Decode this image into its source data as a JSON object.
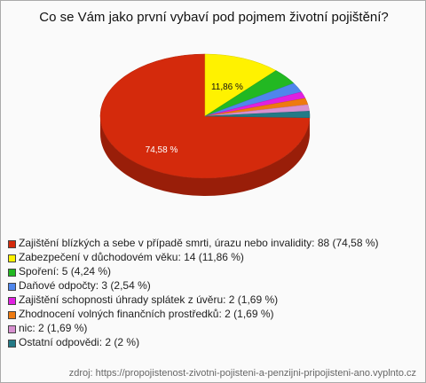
{
  "chart_data": {
    "type": "pie",
    "title": "Co se Vám jako první vybaví pod pojmem životní pojištění?",
    "categories": [
      "Zajištění blízkých a sebe v případě smrti, úrazu nebo invalidity: 88 (74,58 %)",
      "Zabezpečení v důchodovém věku: 14 (11,86 %)",
      "Spoření: 5 (4,24 %)",
      "Daňové odpočty: 3 (2,54 %)",
      "Zajištění schopnosti úhrady splátek z úvěru: 2 (1,69 %)",
      "Zhodnocení volných finančních prostředků: 2 (1,69 %)",
      "nic: 2 (1,69 %)",
      "Ostatní odpovědi: 2 (2 %)"
    ],
    "values": [
      74.58,
      11.86,
      4.24,
      2.54,
      1.69,
      1.69,
      1.69,
      1.69
    ],
    "value_labels": [
      "74,58 %",
      "11,86 %",
      null,
      null,
      null,
      null,
      null,
      null
    ],
    "colors": [
      "#d42a0c",
      "#fff200",
      "#22b822",
      "#4f86ec",
      "#e020e0",
      "#ee7a10",
      "#d890d0",
      "#237a86"
    ],
    "source": "zdroj: https://propojistenost-zivotni-pojisteni-a-penzijni-pripojisteni-ano.vyplnto.cz"
  }
}
